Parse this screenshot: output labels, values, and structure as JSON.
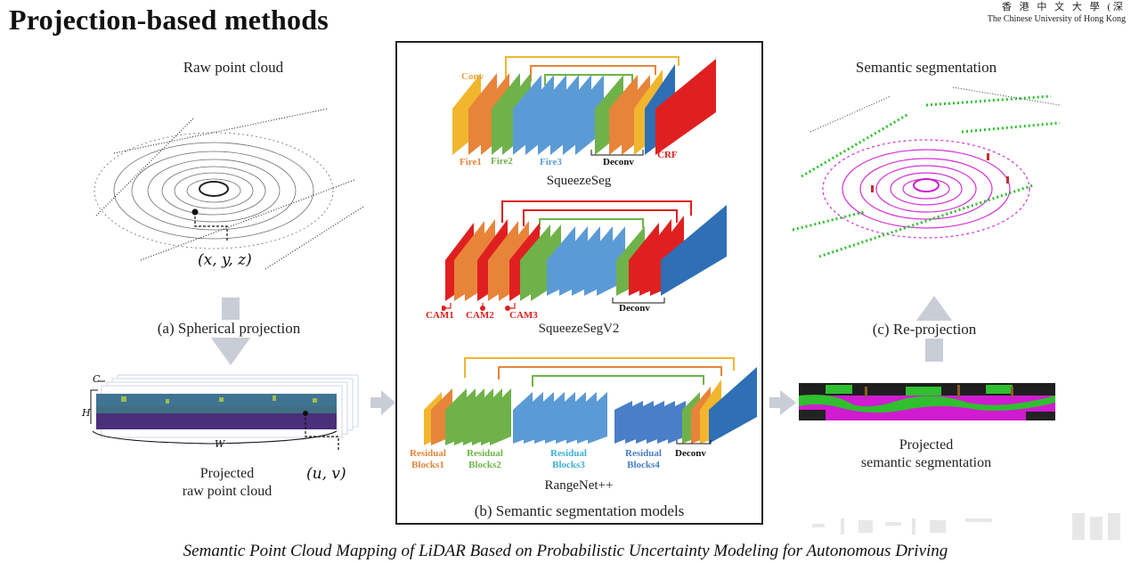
{
  "slide": {
    "title": "Projection-based methods",
    "institution_cn": "香 港 中 文 大 學 (深",
    "institution_en": "The Chinese University of Hong Kong"
  },
  "left_panel": {
    "raw_label": "Raw point cloud",
    "point_coord": "(x, y, z)",
    "projection_label": "(a) Spherical projection",
    "dim_c": "C",
    "dim_h": "H",
    "dim_w": "W",
    "pixel_coord": "(u, v)",
    "projected_label_line1": "Projected",
    "projected_label_line2": "raw point cloud"
  },
  "center_panel": {
    "caption": "(b) Semantic segmentation models",
    "squeezeseg": {
      "name": "SqueezeSeg",
      "labels": [
        "Conv",
        "Fire1",
        "Fire2",
        "Fire3",
        "Deconv",
        "CRF"
      ]
    },
    "squeezesegv2": {
      "name": "SqueezeSegV2",
      "labels": [
        "CAM1",
        "CAM2",
        "CAM3",
        "Deconv"
      ]
    },
    "rangenet": {
      "name": "RangeNet++",
      "labels": [
        "Residual",
        "Blocks1",
        "Residual",
        "Blocks2",
        "Residual",
        "Blocks3",
        "Residual",
        "Blocks4",
        "Deconv"
      ]
    }
  },
  "right_panel": {
    "semantic_label": "Semantic segmentation",
    "reprojection_label": "(c) Re-projection",
    "projected_sem_line1": "Projected",
    "projected_sem_line2": "semantic segmentation"
  },
  "footer": {
    "caption": "Semantic Point Cloud Mapping of LiDAR Based on Probabilistic Uncertainty Modeling for Autonomous Driving"
  },
  "colors": {
    "conv_orange": "#e8843a",
    "fire_green": "#6fb24a",
    "block_blue": "#5b9bd5",
    "deep_blue": "#2e6fb5",
    "crf_red": "#e02020",
    "skip_yellow": "#f1b62e",
    "arrow_gray": "#c9cdd6",
    "seg_magenta": "#d01bd0",
    "seg_green": "#2fbf2f"
  }
}
